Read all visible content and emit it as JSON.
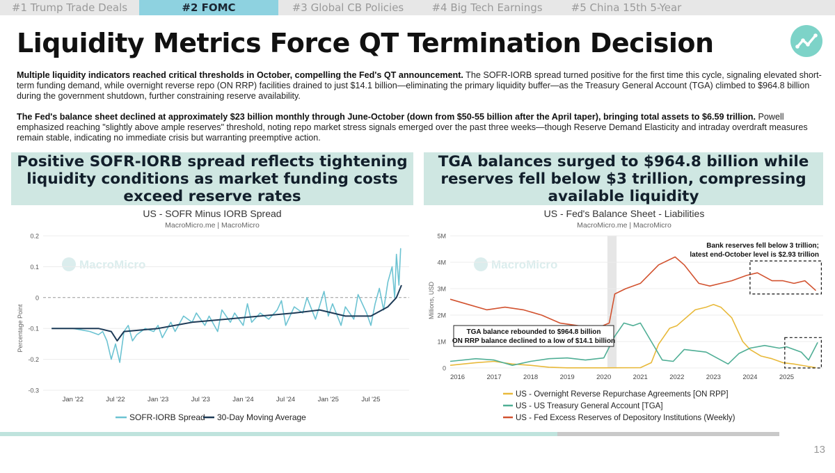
{
  "tabs": [
    {
      "label": "#1 Trump Trade Deals",
      "active": false
    },
    {
      "label": "#2 FOMC",
      "active": true
    },
    {
      "label": "#3 Global CB Policies",
      "active": false
    },
    {
      "label": "#4 Big Tech Earnings",
      "active": false
    },
    {
      "label": "#5 China 15th 5-Year",
      "active": false
    }
  ],
  "title": "Liquidity Metrics Force QT Termination Decision",
  "logo_icon": "trend-chart-icon",
  "paragraphs": [
    {
      "bold": "Multiple liquidity indicators reached critical thresholds in October, compelling the Fed's QT announcement.",
      "text": " The SOFR-IORB spread turned positive for the first time this cycle, signaling elevated short-term funding demand, while overnight reverse repo (ON RRP) facilities drained to just $14.1 billion—eliminating the primary liquidity buffer—as the Treasury General Account (TGA) climbed to $964.8 billion during the government shutdown, further constraining reserve availability."
    },
    {
      "bold": "The Fed's balance sheet declined at approximately $23 billion monthly through June-October (down from $50-55 billion after the April taper), bringing total assets to $6.59 trillion.",
      "text": " Powell emphasized reaching \"slightly above ample reserves\" threshold, noting repo market stress signals emerged over the past three weeks—though Reserve Demand Elasticity and intraday overdraft measures remain stable, indicating no immediate crisis but warranting preemptive action."
    }
  ],
  "banners": {
    "left": "Positive SOFR-IORB spread reflects tightening liquidity conditions as market funding costs exceed reserve rates",
    "right": "TGA balances surged to $964.8 billion while reserves fell below $3 trillion, compressing available liquidity"
  },
  "colors": {
    "tab_active": "#8ed2e0",
    "banner_bg": "#cfe7e2",
    "sofr": "#6cc3d2",
    "ma": "#1d3a56",
    "onrrp": "#e8b93a",
    "tga": "#4fae95",
    "reserves": "#d2522f",
    "logo": "#7dd3c8"
  },
  "chart_data": [
    {
      "type": "line",
      "title": "US - SOFR Minus IORB Spread",
      "subtitle": "MacroMicro.me | MacroMicro",
      "watermark": "MacroMicro",
      "xlabel": "",
      "ylabel": "Percentage Point",
      "ylim": [
        -0.3,
        0.2
      ],
      "yticks": [
        0.2,
        0.1,
        0,
        -0.1,
        -0.2,
        -0.3
      ],
      "ytick_labels": [
        "0.2",
        "0.1",
        "0",
        "-0.1",
        "-0.2",
        "-0.3"
      ],
      "xlim": [
        2021.65,
        2025.95
      ],
      "xticks": [
        {
          "x": 2022.0,
          "label": "Jan '22"
        },
        {
          "x": 2022.5,
          "label": "Jul '22"
        },
        {
          "x": 2023.0,
          "label": "Jan '23"
        },
        {
          "x": 2023.5,
          "label": "Jul '23"
        },
        {
          "x": 2024.0,
          "label": "Jan '24"
        },
        {
          "x": 2024.5,
          "label": "Jul '24"
        },
        {
          "x": 2025.0,
          "label": "Jan '25"
        },
        {
          "x": 2025.5,
          "label": "Jul '25"
        }
      ],
      "legend_position": "bottom",
      "series": [
        {
          "name": "SOFR-IORB Spread",
          "points": [
            [
              2021.75,
              -0.1
            ],
            [
              2022.0,
              -0.1
            ],
            [
              2022.2,
              -0.11
            ],
            [
              2022.3,
              -0.12
            ],
            [
              2022.35,
              -0.11
            ],
            [
              2022.4,
              -0.14
            ],
            [
              2022.45,
              -0.2
            ],
            [
              2022.5,
              -0.15
            ],
            [
              2022.55,
              -0.21
            ],
            [
              2022.6,
              -0.11
            ],
            [
              2022.65,
              -0.09
            ],
            [
              2022.7,
              -0.14
            ],
            [
              2022.75,
              -0.12
            ],
            [
              2022.85,
              -0.1
            ],
            [
              2022.95,
              -0.11
            ],
            [
              2023.0,
              -0.09
            ],
            [
              2023.05,
              -0.13
            ],
            [
              2023.15,
              -0.08
            ],
            [
              2023.2,
              -0.11
            ],
            [
              2023.3,
              -0.06
            ],
            [
              2023.4,
              -0.08
            ],
            [
              2023.45,
              -0.05
            ],
            [
              2023.55,
              -0.09
            ],
            [
              2023.6,
              -0.06
            ],
            [
              2023.7,
              -0.11
            ],
            [
              2023.75,
              -0.04
            ],
            [
              2023.85,
              -0.08
            ],
            [
              2023.9,
              -0.05
            ],
            [
              2024.0,
              -0.09
            ],
            [
              2024.05,
              -0.02
            ],
            [
              2024.1,
              -0.08
            ],
            [
              2024.2,
              -0.05
            ],
            [
              2024.3,
              -0.07
            ],
            [
              2024.4,
              -0.04
            ],
            [
              2024.45,
              -0.01
            ],
            [
              2024.5,
              -0.09
            ],
            [
              2024.6,
              -0.03
            ],
            [
              2024.7,
              -0.05
            ],
            [
              2024.75,
              0.0
            ],
            [
              2024.85,
              -0.07
            ],
            [
              2024.95,
              0.02
            ],
            [
              2025.0,
              -0.06
            ],
            [
              2025.05,
              -0.02
            ],
            [
              2025.15,
              -0.09
            ],
            [
              2025.2,
              -0.03
            ],
            [
              2025.3,
              -0.07
            ],
            [
              2025.35,
              0.01
            ],
            [
              2025.45,
              -0.05
            ],
            [
              2025.5,
              -0.09
            ],
            [
              2025.55,
              -0.02
            ],
            [
              2025.6,
              0.03
            ],
            [
              2025.65,
              -0.04
            ],
            [
              2025.7,
              0.05
            ],
            [
              2025.75,
              0.1
            ],
            [
              2025.78,
              0.0
            ],
            [
              2025.8,
              0.14
            ],
            [
              2025.83,
              0.04
            ],
            [
              2025.85,
              0.16
            ]
          ]
        },
        {
          "name": "30-Day Moving Average",
          "points": [
            [
              2021.75,
              -0.1
            ],
            [
              2022.3,
              -0.1
            ],
            [
              2022.45,
              -0.11
            ],
            [
              2022.52,
              -0.14
            ],
            [
              2022.6,
              -0.11
            ],
            [
              2023.0,
              -0.1
            ],
            [
              2023.4,
              -0.08
            ],
            [
              2023.8,
              -0.07
            ],
            [
              2024.2,
              -0.06
            ],
            [
              2024.6,
              -0.05
            ],
            [
              2024.9,
              -0.04
            ],
            [
              2025.2,
              -0.06
            ],
            [
              2025.5,
              -0.06
            ],
            [
              2025.7,
              -0.03
            ],
            [
              2025.8,
              0.0
            ],
            [
              2025.86,
              0.04
            ]
          ]
        }
      ]
    },
    {
      "type": "line",
      "title": "US - Fed's Balance Sheet - Liabilities",
      "subtitle": "MacroMicro.me | MacroMicro",
      "watermark": "MacroMicro",
      "xlabel": "",
      "ylabel": "Millions, USD",
      "ylim": [
        0,
        5000000
      ],
      "yticks": [
        0,
        1000000,
        2000000,
        3000000,
        4000000,
        5000000
      ],
      "ytick_labels": [
        "0",
        "1M",
        "2M",
        "3M",
        "4M",
        "5M"
      ],
      "xlim": [
        2015.8,
        2026.0
      ],
      "xticks": [
        {
          "x": 2016,
          "label": "2016"
        },
        {
          "x": 2017,
          "label": "2017"
        },
        {
          "x": 2018,
          "label": "2018"
        },
        {
          "x": 2019,
          "label": "2019"
        },
        {
          "x": 2020,
          "label": "2020"
        },
        {
          "x": 2021,
          "label": "2021"
        },
        {
          "x": 2022,
          "label": "2022"
        },
        {
          "x": 2023,
          "label": "2023"
        },
        {
          "x": 2024,
          "label": "2024"
        },
        {
          "x": 2025,
          "label": "2025"
        }
      ],
      "shaded_range": [
        2020.1,
        2020.35
      ],
      "legend_position": "bottom",
      "annotations": [
        {
          "lines": [
            "Bank reserves fell below 3 trillion;",
            "latest end-October level is $2.93 trillion"
          ]
        },
        {
          "lines": [
            "TGA balance rebounded to $964.8 billion",
            "ON RRP balance declined to a low of $14.1 billion"
          ]
        }
      ],
      "highlight_boxes": [
        {
          "x": [
            2024.0,
            2025.95
          ],
          "y": [
            2800000,
            4050000
          ]
        },
        {
          "x": [
            2024.95,
            2025.95
          ],
          "y": [
            0,
            1150000
          ]
        }
      ],
      "series": [
        {
          "name": "US - Overnight Reverse Repurchase Agreements [ON RPP]",
          "points": [
            [
              2015.8,
              100000
            ],
            [
              2016.5,
              200000
            ],
            [
              2017.0,
              250000
            ],
            [
              2017.5,
              150000
            ],
            [
              2018.0,
              100000
            ],
            [
              2018.5,
              30000
            ],
            [
              2019.0,
              5000
            ],
            [
              2020.0,
              5000
            ],
            [
              2021.0,
              10000
            ],
            [
              2021.3,
              200000
            ],
            [
              2021.5,
              900000
            ],
            [
              2021.8,
              1500000
            ],
            [
              2022.0,
              1600000
            ],
            [
              2022.5,
              2200000
            ],
            [
              2022.8,
              2300000
            ],
            [
              2023.0,
              2400000
            ],
            [
              2023.2,
              2300000
            ],
            [
              2023.5,
              1900000
            ],
            [
              2023.8,
              1000000
            ],
            [
              2024.0,
              700000
            ],
            [
              2024.3,
              450000
            ],
            [
              2024.6,
              350000
            ],
            [
              2024.9,
              200000
            ],
            [
              2025.2,
              150000
            ],
            [
              2025.5,
              80000
            ],
            [
              2025.8,
              14100
            ]
          ]
        },
        {
          "name": "US - US Treasury General Account [TGA]",
          "points": [
            [
              2015.8,
              250000
            ],
            [
              2016.5,
              350000
            ],
            [
              2017.0,
              300000
            ],
            [
              2017.5,
              100000
            ],
            [
              2018.0,
              250000
            ],
            [
              2018.5,
              350000
            ],
            [
              2019.0,
              380000
            ],
            [
              2019.5,
              300000
            ],
            [
              2020.0,
              380000
            ],
            [
              2020.3,
              1200000
            ],
            [
              2020.55,
              1700000
            ],
            [
              2020.8,
              1600000
            ],
            [
              2021.0,
              1700000
            ],
            [
              2021.3,
              1000000
            ],
            [
              2021.6,
              300000
            ],
            [
              2021.9,
              250000
            ],
            [
              2022.2,
              700000
            ],
            [
              2022.5,
              650000
            ],
            [
              2022.8,
              600000
            ],
            [
              2023.0,
              450000
            ],
            [
              2023.4,
              150000
            ],
            [
              2023.7,
              550000
            ],
            [
              2024.0,
              750000
            ],
            [
              2024.4,
              850000
            ],
            [
              2024.8,
              750000
            ],
            [
              2025.0,
              800000
            ],
            [
              2025.4,
              600000
            ],
            [
              2025.6,
              300000
            ],
            [
              2025.75,
              700000
            ],
            [
              2025.85,
              964800
            ]
          ]
        },
        {
          "name": "US - Fed Excess Reserves of Depository Institutions (Weekly)",
          "points": [
            [
              2015.8,
              2600000
            ],
            [
              2016.3,
              2400000
            ],
            [
              2016.8,
              2200000
            ],
            [
              2017.3,
              2300000
            ],
            [
              2017.8,
              2200000
            ],
            [
              2018.3,
              2000000
            ],
            [
              2018.8,
              1700000
            ],
            [
              2019.3,
              1600000
            ],
            [
              2019.8,
              1500000
            ],
            [
              2020.15,
              1700000
            ],
            [
              2020.3,
              2800000
            ],
            [
              2020.6,
              3000000
            ],
            [
              2021.0,
              3200000
            ],
            [
              2021.5,
              3900000
            ],
            [
              2021.95,
              4200000
            ],
            [
              2022.2,
              3900000
            ],
            [
              2022.6,
              3200000
            ],
            [
              2022.9,
              3100000
            ],
            [
              2023.2,
              3200000
            ],
            [
              2023.5,
              3300000
            ],
            [
              2023.9,
              3500000
            ],
            [
              2024.2,
              3600000
            ],
            [
              2024.6,
              3300000
            ],
            [
              2024.9,
              3300000
            ],
            [
              2025.2,
              3200000
            ],
            [
              2025.5,
              3300000
            ],
            [
              2025.8,
              2930000
            ]
          ]
        }
      ]
    }
  ],
  "page": {
    "number": "13",
    "progress": 0.715
  }
}
